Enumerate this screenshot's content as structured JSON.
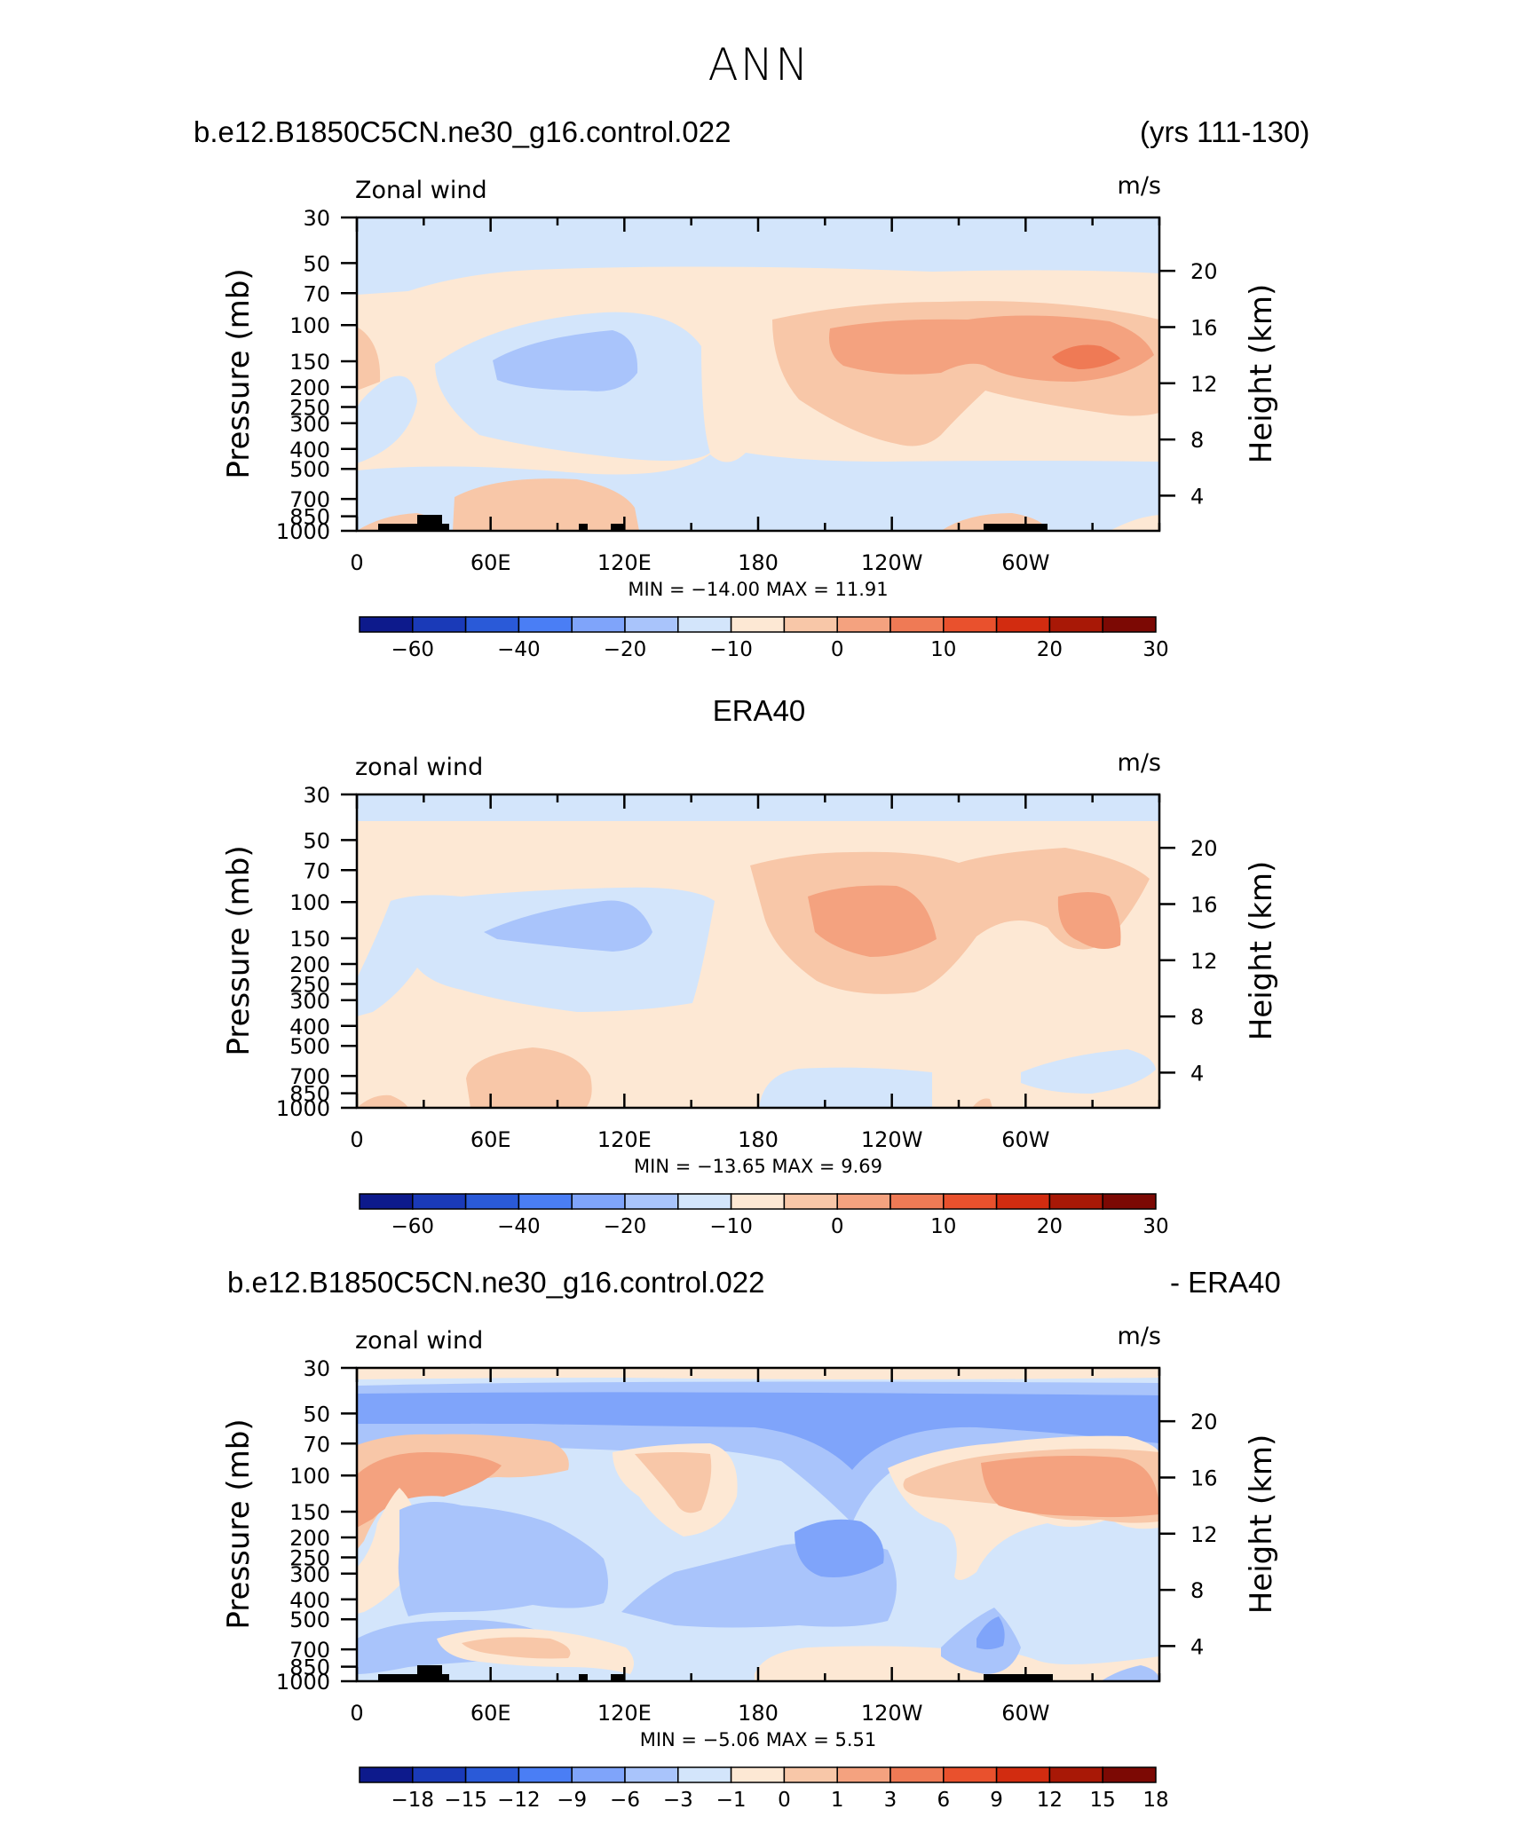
{
  "figure": {
    "title": "ANN",
    "panel1_left": "b.e12.B1850C5CN.ne30_g16.control.022",
    "panel1_right": "(yrs 111-130)",
    "panel2_center": "ERA40",
    "panel3_left": "b.e12.B1850C5CN.ne30_g16.control.022",
    "panel3_right": "- ERA40"
  },
  "chart_data": [
    {
      "type": "heatmap",
      "title": "Zonal wind",
      "units": "m/s",
      "ylabel": "Pressure (mb)",
      "ylabel_right": "Height (km)",
      "x_ticks": [
        "0",
        "60E",
        "120E",
        "180",
        "120W",
        "60W"
      ],
      "y_ticks": [
        "30",
        "50",
        "70",
        "100",
        "150",
        "200",
        "250",
        "300",
        "400",
        "500",
        "700",
        "850",
        "1000"
      ],
      "y_ticks_right": [
        "20",
        "16",
        "12",
        "8",
        "4"
      ],
      "stats_text": "MIN = −14.00   MAX =   11.91",
      "min": -14.0,
      "max": 11.91,
      "colorbar_labels": [
        "−60",
        "−40",
        "−20",
        "−10",
        "0",
        "10",
        "20",
        "30"
      ],
      "colors": [
        "#0d1a8c",
        "#1a3ab8",
        "#2a5ad8",
        "#4a7ef5",
        "#7fa4fa",
        "#a9c4fb",
        "#d3e5fb",
        "#fde8d4",
        "#f8c7a8",
        "#f4a27f",
        "#ef7a55",
        "#e9512d",
        "#d22c10",
        "#a81806",
        "#7c0904"
      ]
    },
    {
      "type": "heatmap",
      "title": "zonal wind",
      "units": "m/s",
      "ylabel": "Pressure (mb)",
      "ylabel_right": "Height (km)",
      "x_ticks": [
        "0",
        "60E",
        "120E",
        "180",
        "120W",
        "60W"
      ],
      "y_ticks": [
        "30",
        "50",
        "70",
        "100",
        "150",
        "200",
        "250",
        "300",
        "400",
        "500",
        "700",
        "850",
        "1000"
      ],
      "y_ticks_right": [
        "20",
        "16",
        "12",
        "8",
        "4"
      ],
      "stats_text": "MIN = −13.65   MAX =    9.69",
      "min": -13.65,
      "max": 9.69,
      "colorbar_labels": [
        "−60",
        "−40",
        "−20",
        "−10",
        "0",
        "10",
        "20",
        "30"
      ]
    },
    {
      "type": "heatmap",
      "title": "zonal wind",
      "units": "m/s",
      "ylabel": "Pressure (mb)",
      "ylabel_right": "Height (km)",
      "x_ticks": [
        "0",
        "60E",
        "120E",
        "180",
        "120W",
        "60W"
      ],
      "y_ticks": [
        "30",
        "50",
        "70",
        "100",
        "150",
        "200",
        "250",
        "300",
        "400",
        "500",
        "700",
        "850",
        "1000"
      ],
      "y_ticks_right": [
        "20",
        "16",
        "12",
        "8",
        "4"
      ],
      "stats_text": "MIN =    −5.06   MAX =    5.51",
      "min": -5.06,
      "max": 5.51,
      "colorbar_labels": [
        "−18",
        "−15",
        "−12",
        "−9",
        "−6",
        "−3",
        "−1",
        "0",
        "1",
        "3",
        "6",
        "9",
        "12",
        "15",
        "18"
      ]
    }
  ]
}
